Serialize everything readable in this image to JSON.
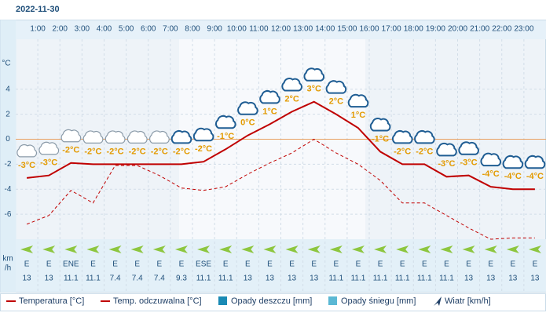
{
  "chart_data": {
    "type": "line",
    "title": "2022-11-30",
    "y_label": "°C",
    "x": [
      0.5,
      1.5,
      2.5,
      3.5,
      4.5,
      5.5,
      6.5,
      7.5,
      8.5,
      9.5,
      10.5,
      11.5,
      12.5,
      13.5,
      14.5,
      15.5,
      16.5,
      17.5,
      18.5,
      19.5,
      20.5,
      21.5,
      22.5,
      23.5
    ],
    "xlim": [
      0,
      24
    ],
    "xticks": [
      {
        "value": 1,
        "label": "1:00"
      },
      {
        "value": 2,
        "label": "2:00"
      },
      {
        "value": 3,
        "label": "3:00"
      },
      {
        "value": 4,
        "label": "4:00"
      },
      {
        "value": 5,
        "label": "5:00"
      },
      {
        "value": 6,
        "label": "6:00"
      },
      {
        "value": 7,
        "label": "7:00"
      },
      {
        "value": 8,
        "label": "8:00"
      },
      {
        "value": 9,
        "label": "9:00"
      },
      {
        "value": 10,
        "label": "10:00"
      },
      {
        "value": 11,
        "label": "11:00"
      },
      {
        "value": 12,
        "label": "12:00"
      },
      {
        "value": 13,
        "label": "13:00"
      },
      {
        "value": 14,
        "label": "14:00"
      },
      {
        "value": 15,
        "label": "15:00"
      },
      {
        "value": 16,
        "label": "16:00"
      },
      {
        "value": 17,
        "label": "17:00"
      },
      {
        "value": 18,
        "label": "18:00"
      },
      {
        "value": 19,
        "label": "19:00"
      },
      {
        "value": 20,
        "label": "20:00"
      },
      {
        "value": 21,
        "label": "21:00"
      },
      {
        "value": 22,
        "label": "22:00"
      },
      {
        "value": 23,
        "label": "23:00"
      }
    ],
    "ylim": [
      -8,
      8
    ],
    "yticks": [
      -6,
      -4,
      -2,
      0,
      2,
      4
    ],
    "grid": true,
    "zero_line_color": "#e8a060",
    "series": [
      {
        "name": "Temperatura [°C]",
        "color": "#c00000",
        "style": "solid",
        "values": [
          -3.1,
          -2.9,
          -1.9,
          -2,
          -2,
          -2,
          -2,
          -2,
          -1.8,
          -0.8,
          0.3,
          1.2,
          2.2,
          3,
          2,
          0.9,
          -1,
          -2,
          -2,
          -3,
          -2.9,
          -3.8,
          -4,
          -4
        ],
        "value_labels": [
          "-3°C",
          "-3°C",
          "-2°C",
          "-2°C",
          "-2°C",
          "-2°C",
          "-2°C",
          "-2°C",
          "-2°C",
          "-1°C",
          "0°C",
          "1°C",
          "2°C",
          "3°C",
          "2°C",
          "1°C",
          "-1°C",
          "-2°C",
          "-2°C",
          "-3°C",
          "-3°C",
          "-4°C",
          "-4°C",
          "-4°C"
        ]
      },
      {
        "name": "Temp. odczuwalna [°C]",
        "color": "#c00000",
        "style": "dashed",
        "values": [
          -6.8,
          -6.1,
          -4.1,
          -5.1,
          -2.1,
          -2.1,
          -2.9,
          -3.9,
          -4.1,
          -3.8,
          -2.8,
          -1.9,
          -1.1,
          0,
          -1.1,
          -2,
          -3.3,
          -5.1,
          -5.1,
          -6.1,
          -7.1,
          -8,
          -7.9,
          -7.9
        ]
      },
      {
        "name": "Opady deszczu [mm]",
        "color": "#1a8ab4",
        "style": "bar",
        "values": [
          0,
          0,
          0,
          0,
          0,
          0,
          0,
          0,
          0,
          0,
          0,
          0,
          0,
          0,
          0,
          0,
          0,
          0,
          0,
          0,
          0,
          0,
          0,
          0
        ]
      },
      {
        "name": "Opady śniegu [mm]",
        "color": "#5bb8d4",
        "style": "bar",
        "values": [
          0,
          0,
          0,
          0,
          0,
          0,
          0,
          0,
          0,
          0,
          0,
          0,
          0,
          0,
          0,
          0,
          0,
          0,
          0,
          0,
          0,
          0,
          0,
          0
        ]
      }
    ],
    "wind": {
      "name": "Wiatr [km/h]",
      "unit": [
        "km",
        "/h"
      ],
      "color": "#8dc63f",
      "legend_color": "#1f3f66",
      "directions": [
        "E",
        "E",
        "ENE",
        "E",
        "E",
        "E",
        "E",
        "E",
        "ESE",
        "E",
        "E",
        "E",
        "E",
        "E",
        "E",
        "E",
        "E",
        "E",
        "E",
        "E",
        "E",
        "E",
        "E",
        "E"
      ],
      "values": [
        13,
        13,
        11.1,
        11.1,
        7.4,
        7.4,
        7.4,
        9.3,
        11.1,
        11.1,
        13,
        13,
        13,
        13,
        11.1,
        11.1,
        11.1,
        11.1,
        11.1,
        11.1,
        13,
        13,
        13,
        13
      ]
    }
  }
}
